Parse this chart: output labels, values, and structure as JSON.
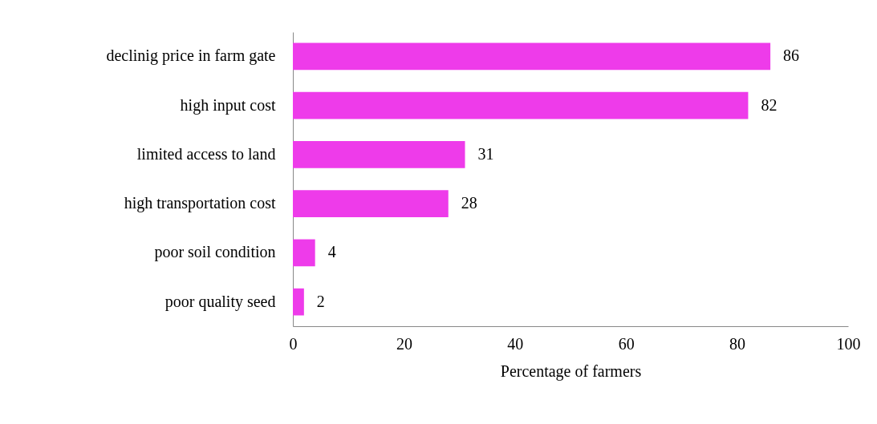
{
  "chart_data": {
    "type": "bar",
    "orientation": "horizontal",
    "xlabel": "Percentage of farmers",
    "categories": [
      "declinig price in farm gate",
      "high input cost",
      "limited access to land",
      "high transportation cost",
      "poor soil condition",
      "poor quality seed"
    ],
    "values": [
      86,
      82,
      31,
      28,
      4,
      2
    ],
    "color": "#ee3bea",
    "xlim": [
      0,
      100
    ],
    "xticks": [
      0,
      20,
      40,
      60,
      80,
      100
    ],
    "grid": false,
    "data_labels": true
  }
}
